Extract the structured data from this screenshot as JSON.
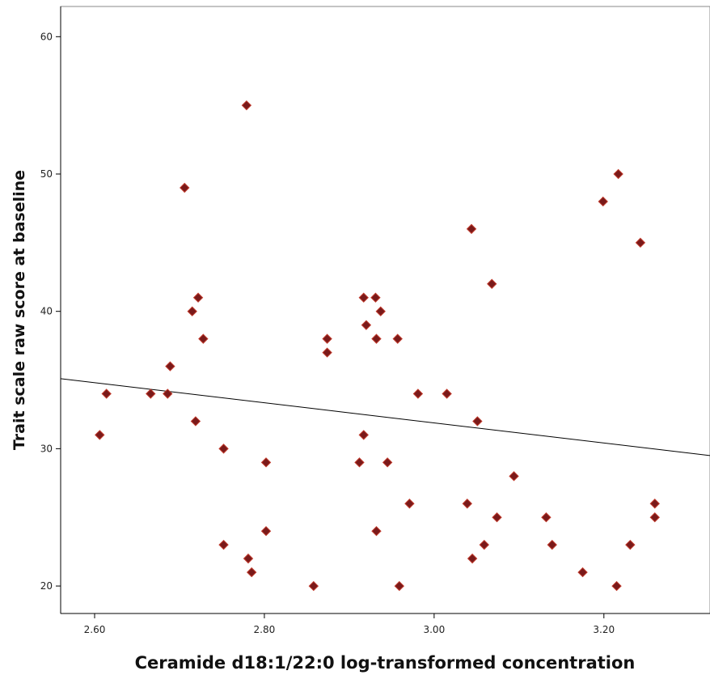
{
  "chart_data": {
    "type": "scatter",
    "title": "",
    "xlabel": "Ceramide d18:1/22:0 log-transformed concentration",
    "ylabel": "Trait scale raw score at baseline",
    "xlim": [
      2.56,
      3.325
    ],
    "ylim": [
      18.0,
      62.2
    ],
    "x_ticks": [
      "2.60",
      "2.80",
      "3.00",
      "3.20"
    ],
    "y_ticks": [
      "20",
      "30",
      "40",
      "50",
      "60"
    ],
    "grid": false,
    "legend": "none",
    "marker_color": "#7a1a1a",
    "marker_edge_color": "#c0392b",
    "line_color": "#000000",
    "fit_line": {
      "x": [
        2.56,
        3.325
      ],
      "y": [
        35.1,
        29.5
      ]
    },
    "points": [
      {
        "x": 2.606,
        "y": 31
      },
      {
        "x": 2.614,
        "y": 34
      },
      {
        "x": 2.666,
        "y": 34
      },
      {
        "x": 2.686,
        "y": 34
      },
      {
        "x": 2.689,
        "y": 36
      },
      {
        "x": 2.706,
        "y": 49
      },
      {
        "x": 2.715,
        "y": 40
      },
      {
        "x": 2.719,
        "y": 32
      },
      {
        "x": 2.722,
        "y": 41
      },
      {
        "x": 2.728,
        "y": 38
      },
      {
        "x": 2.752,
        "y": 30
      },
      {
        "x": 2.752,
        "y": 23
      },
      {
        "x": 2.779,
        "y": 55
      },
      {
        "x": 2.781,
        "y": 22
      },
      {
        "x": 2.785,
        "y": 21
      },
      {
        "x": 2.802,
        "y": 29
      },
      {
        "x": 2.802,
        "y": 24
      },
      {
        "x": 2.858,
        "y": 20
      },
      {
        "x": 2.874,
        "y": 38
      },
      {
        "x": 2.874,
        "y": 37
      },
      {
        "x": 2.912,
        "y": 29
      },
      {
        "x": 2.917,
        "y": 41
      },
      {
        "x": 2.917,
        "y": 31
      },
      {
        "x": 2.92,
        "y": 39
      },
      {
        "x": 2.931,
        "y": 41
      },
      {
        "x": 2.932,
        "y": 38
      },
      {
        "x": 2.932,
        "y": 24
      },
      {
        "x": 2.937,
        "y": 40
      },
      {
        "x": 2.945,
        "y": 29
      },
      {
        "x": 2.957,
        "y": 38
      },
      {
        "x": 2.959,
        "y": 20
      },
      {
        "x": 2.971,
        "y": 26
      },
      {
        "x": 2.981,
        "y": 34
      },
      {
        "x": 3.015,
        "y": 34
      },
      {
        "x": 3.039,
        "y": 26
      },
      {
        "x": 3.044,
        "y": 46
      },
      {
        "x": 3.045,
        "y": 22
      },
      {
        "x": 3.051,
        "y": 32
      },
      {
        "x": 3.059,
        "y": 23
      },
      {
        "x": 3.068,
        "y": 42
      },
      {
        "x": 3.074,
        "y": 25
      },
      {
        "x": 3.094,
        "y": 28
      },
      {
        "x": 3.132,
        "y": 25
      },
      {
        "x": 3.139,
        "y": 23
      },
      {
        "x": 3.175,
        "y": 21
      },
      {
        "x": 3.199,
        "y": 48
      },
      {
        "x": 3.215,
        "y": 20
      },
      {
        "x": 3.217,
        "y": 50
      },
      {
        "x": 3.231,
        "y": 23
      },
      {
        "x": 3.243,
        "y": 45
      },
      {
        "x": 3.26,
        "y": 26
      },
      {
        "x": 3.26,
        "y": 25
      }
    ]
  }
}
